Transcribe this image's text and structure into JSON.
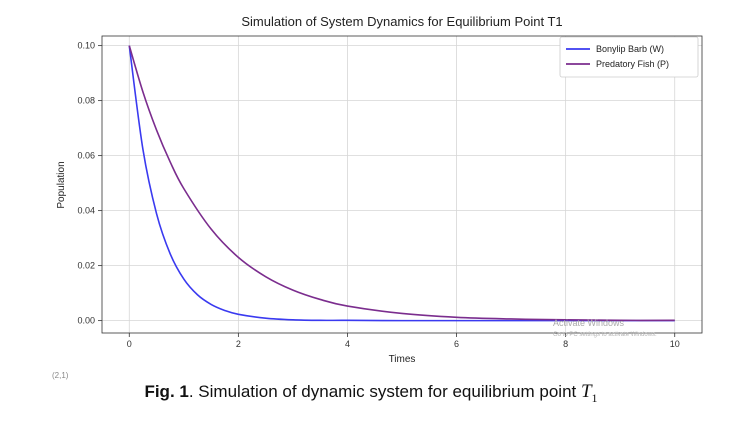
{
  "chart_data": {
    "type": "line",
    "title": "Simulation of System Dynamics for Equilibrium Point T1",
    "xlabel": "Times",
    "ylabel": "Population",
    "xlim": [
      -0.5,
      10.5
    ],
    "ylim": [
      -0.0045,
      0.1035
    ],
    "xticks": [
      0,
      2,
      4,
      6,
      8,
      10
    ],
    "xtick_labels": [
      "0",
      "2",
      "4",
      "6",
      "8",
      "10"
    ],
    "yticks": [
      0,
      0.02,
      0.04,
      0.06,
      0.08,
      0.1
    ],
    "ytick_labels": [
      "0.00",
      "0.02",
      "0.04",
      "0.06",
      "0.08",
      "0.10"
    ],
    "grid": true,
    "legend_position": "top-right",
    "series": [
      {
        "name": "Bonylip Barb (W)",
        "color": "#3a3af0",
        "x": [
          0,
          0.25,
          0.5,
          0.75,
          1,
          1.25,
          1.5,
          1.75,
          2,
          2.5,
          3,
          3.5,
          4,
          5,
          6,
          7,
          8,
          9,
          10
        ],
        "y": [
          0.1,
          0.0623,
          0.0389,
          0.0243,
          0.0151,
          0.0094,
          0.0059,
          0.0037,
          0.0023,
          0.0009,
          0.0003,
          0.0001,
          0.0001,
          0,
          0,
          0,
          0,
          0,
          0
        ]
      },
      {
        "name": "Predatory Fish (P)",
        "color": "#7b2d8e",
        "x": [
          0,
          0.25,
          0.5,
          0.75,
          1,
          1.5,
          2,
          2.5,
          3,
          3.5,
          4,
          5,
          6,
          7,
          8,
          9,
          10
        ],
        "y": [
          0.1,
          0.0832,
          0.0693,
          0.0577,
          0.048,
          0.0333,
          0.023,
          0.016,
          0.0111,
          0.0077,
          0.0053,
          0.0026,
          0.0012,
          0.0006,
          0.0003,
          0.0001,
          0.0001
        ]
      }
    ]
  },
  "watermark": {
    "line1": "Activate Windows",
    "line2": "Go to PC settings to activate Windows."
  },
  "stray_text": "(2,1)",
  "caption": {
    "label": "Fig. 1",
    "text": ". Simulation of dynamic system for equilibrium point ",
    "var": "T",
    "sub": "1"
  }
}
